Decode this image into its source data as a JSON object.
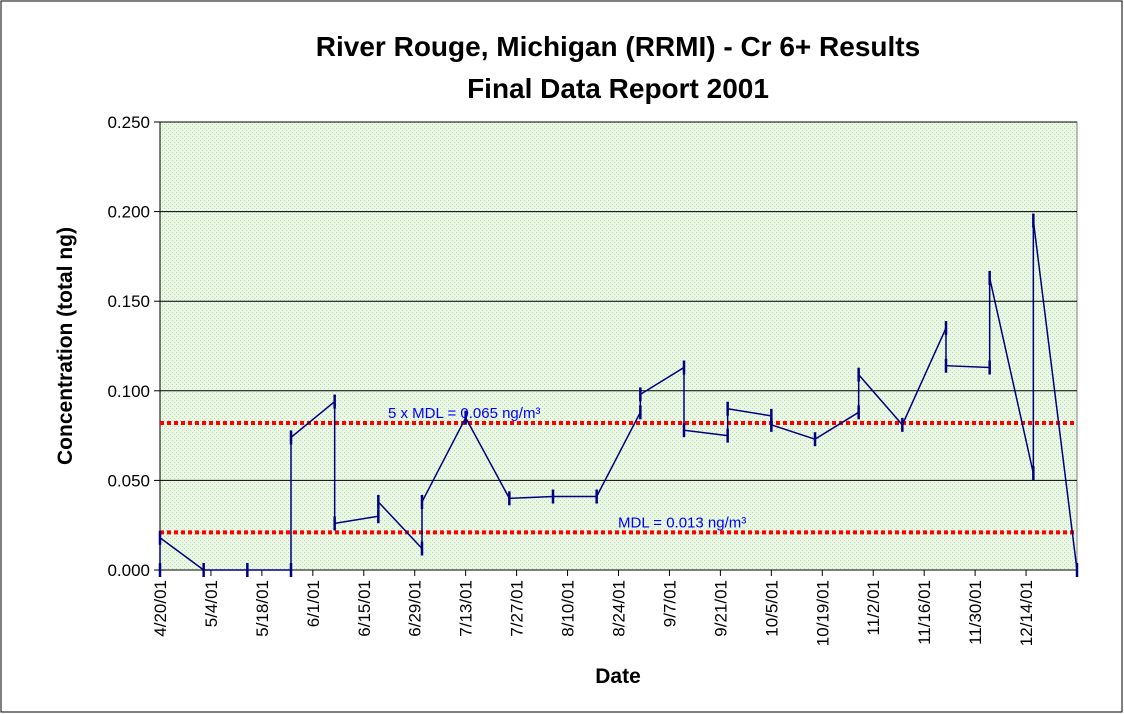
{
  "chart_data": {
    "type": "line",
    "title": [
      "River Rouge, Michigan (RRMI)  - Cr 6+ Results",
      "Final Data Report 2001"
    ],
    "x_label": "Date",
    "y_label": "Concentration (total ng)",
    "x": [
      "2001-04-20",
      "2001-04-20",
      "2001-05-02",
      "2001-05-14",
      "2001-05-26",
      "2001-05-26",
      "2001-06-07",
      "2001-06-07",
      "2001-06-19",
      "2001-06-19",
      "2001-07-01",
      "2001-07-01",
      "2001-07-13",
      "2001-07-25",
      "2001-08-06",
      "2001-08-18",
      "2001-08-30",
      "2001-08-30",
      "2001-09-11",
      "2001-09-11",
      "2001-09-23",
      "2001-09-23",
      "2001-10-05",
      "2001-10-05",
      "2001-10-17",
      "2001-10-29",
      "2001-10-29",
      "2001-11-10",
      "2001-11-22",
      "2001-11-22",
      "2001-12-04",
      "2001-12-04",
      "2001-12-16",
      "2001-12-16",
      "2001-12-28"
    ],
    "series": [
      {
        "color": "#000080",
        "values": [
          0.0,
          0.018,
          0.0,
          0.0,
          0.0,
          0.074,
          0.094,
          0.026,
          0.03,
          0.038,
          0.012,
          0.038,
          0.085,
          0.04,
          0.041,
          0.041,
          0.088,
          0.098,
          0.113,
          0.078,
          0.075,
          0.09,
          0.086,
          0.081,
          0.073,
          0.088,
          0.109,
          0.081,
          0.135,
          0.114,
          0.113,
          0.163,
          0.054,
          0.195,
          0.0
        ]
      }
    ],
    "xlim": [
      "2001-04-20",
      "2001-12-28"
    ],
    "xticks": [
      {
        "value": "2001-04-20",
        "label": "4/20/01"
      },
      {
        "value": "2001-05-04",
        "label": "5/4/01"
      },
      {
        "value": "2001-05-18",
        "label": "5/18/01"
      },
      {
        "value": "2001-06-01",
        "label": "6/1/01"
      },
      {
        "value": "2001-06-15",
        "label": "6/15/01"
      },
      {
        "value": "2001-06-29",
        "label": "6/29/01"
      },
      {
        "value": "2001-07-13",
        "label": "7/13/01"
      },
      {
        "value": "2001-07-27",
        "label": "7/27/01"
      },
      {
        "value": "2001-08-10",
        "label": "8/10/01"
      },
      {
        "value": "2001-08-24",
        "label": "8/24/01"
      },
      {
        "value": "2001-09-07",
        "label": "9/7/01"
      },
      {
        "value": "2001-09-21",
        "label": "9/21/01"
      },
      {
        "value": "2001-10-05",
        "label": "10/5/01"
      },
      {
        "value": "2001-10-19",
        "label": "10/19/01"
      },
      {
        "value": "2001-11-02",
        "label": "11/2/01"
      },
      {
        "value": "2001-11-16",
        "label": "11/16/01"
      },
      {
        "value": "2001-11-30",
        "label": "11/30/01"
      },
      {
        "value": "2001-12-14",
        "label": "12/14/01"
      }
    ],
    "ylim": [
      0,
      0.25
    ],
    "yticks": [
      {
        "value": 0,
        "label": "0.000"
      },
      {
        "value": 0.05,
        "label": "0.050"
      },
      {
        "value": 0.1,
        "label": "0.100"
      },
      {
        "value": 0.15,
        "label": "0.150"
      },
      {
        "value": 0.2,
        "label": "0.200"
      },
      {
        "value": 0.25,
        "label": "0.250"
      }
    ],
    "grid": true,
    "reference_lines": [
      {
        "value": 0.082,
        "label": "5 x MDL = 0.065 ng/m³",
        "color": "#ff0000"
      },
      {
        "value": 0.021,
        "label": "MDL = 0.013 ng/m³",
        "color": "#ff0000"
      }
    ]
  }
}
